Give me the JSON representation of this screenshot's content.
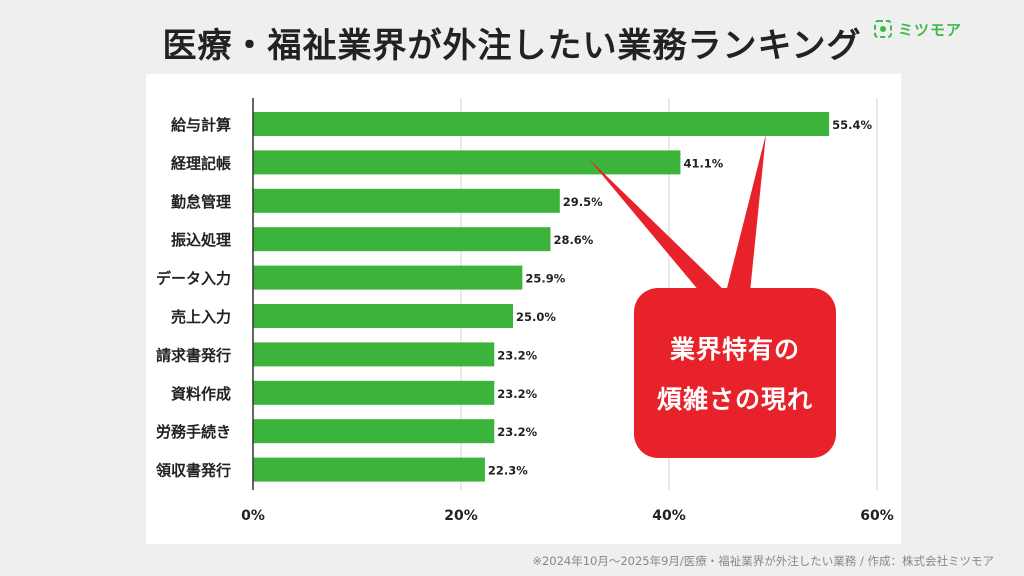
{
  "title": "医療・福祉業界が外注したい業務ランキング",
  "logo": {
    "text": "ミツモア",
    "color": "#3fb84a"
  },
  "callout": {
    "line1": "業界特有の",
    "line2": "煩雑さの現れ",
    "color": "#e8222a"
  },
  "footnote": "※2024年10月〜2025年9月/医療・福祉業界が外注したい業務 / 作成：株式会社ミツモア",
  "chart_data": {
    "type": "bar",
    "orientation": "horizontal",
    "categories": [
      "給与計算",
      "経理記帳",
      "勤怠管理",
      "振込処理",
      "データ入力",
      "売上入力",
      "請求書発行",
      "資料作成",
      "労務手続き",
      "領収書発行"
    ],
    "values": [
      55.4,
      41.1,
      29.5,
      28.6,
      25.9,
      25.0,
      23.2,
      23.2,
      23.2,
      22.3
    ],
    "value_labels": [
      "55.4%",
      "41.1%",
      "29.5%",
      "28.6%",
      "25.9%",
      "25.0%",
      "23.2%",
      "23.2%",
      "23.2%",
      "22.3%"
    ],
    "xlim": [
      0,
      60
    ],
    "xticks": [
      0,
      20,
      40,
      60
    ],
    "xtick_labels": [
      "0%",
      "20%",
      "40%",
      "60%"
    ],
    "grid": "vertical",
    "bar_color": "#3cb43c"
  }
}
